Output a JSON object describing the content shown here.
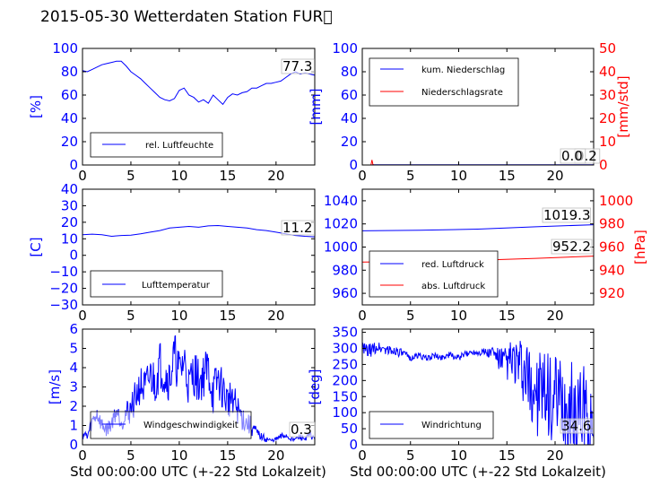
{
  "title": "2015-05-30 Wetterdaten Station FUR\u0000",
  "colors": {
    "left_axis": "#0000ff",
    "right_axis": "#ff0000",
    "frame": "#000000"
  },
  "chart_data": [
    {
      "type": "line",
      "ylabel": "[%]",
      "xlim": [
        0,
        24
      ],
      "ylim": [
        0,
        100
      ],
      "xticks": [
        "0",
        "5",
        "10",
        "15",
        "20"
      ],
      "yticks": [
        "0",
        "20",
        "40",
        "60",
        "80",
        "100"
      ],
      "legend": [
        "rel. Luftfeuchte"
      ],
      "annotations": [
        "77.3"
      ],
      "series": [
        {
          "name": "rel. Luftfeuchte",
          "color": "#0000ff",
          "x": [
            0,
            0.5,
            1,
            1.5,
            2,
            2.5,
            3,
            3.5,
            4,
            4.5,
            5,
            5.5,
            6,
            6.5,
            7,
            7.5,
            8,
            8.5,
            9,
            9.5,
            10,
            10.5,
            11,
            11.5,
            12,
            12.5,
            13,
            13.5,
            14,
            14.5,
            15,
            15.5,
            16,
            16.5,
            17,
            17.5,
            18,
            18.5,
            19,
            19.5,
            20,
            20.5,
            21,
            21.5,
            22,
            22.5,
            23,
            23.5,
            24
          ],
          "y": [
            81,
            80,
            82,
            84,
            86,
            87,
            88,
            89,
            89,
            85,
            80,
            77,
            74,
            70,
            66,
            62,
            58,
            56,
            55,
            57,
            64,
            66,
            60,
            58,
            54,
            56,
            53,
            60,
            56,
            52,
            58,
            61,
            60,
            62,
            63,
            66,
            66,
            68,
            70,
            70,
            71,
            72,
            75,
            78,
            80,
            78,
            79,
            78,
            77
          ]
        }
      ]
    },
    {
      "type": "line",
      "ylabel": "[mm]",
      "ylabel_right": "[mm/std]",
      "xlim": [
        0,
        24
      ],
      "ylim": [
        0,
        100
      ],
      "ylim_right": [
        0,
        50
      ],
      "xticks": [
        "0",
        "5",
        "10",
        "15",
        "20"
      ],
      "yticks": [
        "0",
        "20",
        "40",
        "60",
        "80",
        "100"
      ],
      "yticks_right": [
        "0",
        "10",
        "20",
        "30",
        "40",
        "50"
      ],
      "legend": [
        "kum. Niederschlag",
        "Niederschlagsrate"
      ],
      "annotations": [
        "0.2",
        "0.0"
      ],
      "series": [
        {
          "name": "kum. Niederschlag",
          "color": "#0000ff",
          "axis": "left",
          "x": [
            0,
            1,
            1.1,
            24
          ],
          "y": [
            0,
            0,
            0.2,
            0.2
          ]
        },
        {
          "name": "Niederschlagsrate",
          "color": "#ff0000",
          "axis": "right",
          "x": [
            0,
            0.9,
            1,
            1.1,
            1.2,
            24
          ],
          "y": [
            0,
            0,
            2.2,
            0.3,
            0,
            0
          ]
        }
      ]
    },
    {
      "type": "line",
      "ylabel": "[C]",
      "xlim": [
        0,
        24
      ],
      "ylim": [
        -30,
        40
      ],
      "xticks": [
        "0",
        "5",
        "10",
        "15",
        "20"
      ],
      "yticks": [
        "−30",
        "−20",
        "−10",
        "0",
        "10",
        "20",
        "30",
        "40"
      ],
      "legend": [
        "Lufttemperatur"
      ],
      "annotations": [
        "11.2"
      ],
      "series": [
        {
          "name": "Lufttemperatur",
          "color": "#0000ff",
          "x": [
            0,
            1,
            2,
            3,
            4,
            5,
            6,
            7,
            8,
            9,
            10,
            11,
            12,
            13,
            14,
            15,
            16,
            17,
            18,
            19,
            20,
            21,
            22,
            23,
            24
          ],
          "y": [
            12.5,
            12.8,
            12.5,
            11.5,
            12,
            12.2,
            13,
            14,
            15,
            16.5,
            17,
            17.5,
            17,
            17.8,
            18,
            17.5,
            17,
            16.5,
            15.5,
            15,
            14,
            13,
            12,
            11.5,
            11.2
          ]
        }
      ]
    },
    {
      "type": "line",
      "ylabel_right": "[hPa]",
      "xlim": [
        0,
        24
      ],
      "ylim": [
        950,
        1050
      ],
      "ylim_right": [
        910,
        1010
      ],
      "xticks": [
        "0",
        "5",
        "10",
        "15",
        "20"
      ],
      "yticks": [
        "960",
        "980",
        "1000",
        "1020",
        "1040"
      ],
      "yticks_right": [
        "920",
        "940",
        "960",
        "980",
        "1000"
      ],
      "legend": [
        "red. Luftdruck",
        "abs. Luftdruck"
      ],
      "annotations": [
        "1019.3",
        "952.2"
      ],
      "series": [
        {
          "name": "red. Luftdruck",
          "color": "#0000ff",
          "axis": "left",
          "x": [
            0,
            6,
            12,
            18,
            24
          ],
          "y": [
            1014,
            1014.5,
            1015.5,
            1017.5,
            1019.3
          ]
        },
        {
          "name": "abs. Luftdruck",
          "color": "#ff0000",
          "axis": "right",
          "x": [
            0,
            6,
            12,
            18,
            24
          ],
          "y": [
            947,
            947.5,
            948.5,
            950.2,
            952.2
          ]
        }
      ]
    },
    {
      "type": "line",
      "ylabel": "[m/s]",
      "xlim": [
        0,
        24
      ],
      "ylim": [
        0,
        6
      ],
      "xticks": [
        "0",
        "5",
        "10",
        "15",
        "20"
      ],
      "yticks": [
        "0",
        "1",
        "2",
        "3",
        "4",
        "5",
        "6"
      ],
      "legend": [
        "Windgeschwindigkeit"
      ],
      "annotations": [
        "0.3"
      ],
      "series": [
        {
          "name": "Windgeschwindigkeit",
          "color": "#0000ff",
          "x": [
            0,
            0.5,
            1,
            1.5,
            2,
            2.5,
            3,
            3.5,
            4,
            4.5,
            5,
            5.5,
            6,
            6.5,
            7,
            7.5,
            8,
            8.5,
            9,
            9.5,
            10,
            10.5,
            11,
            11.5,
            12,
            12.5,
            13,
            13.5,
            14,
            14.5,
            15,
            15.5,
            16,
            16.5,
            17,
            17.5,
            18,
            18.5,
            19,
            19.5,
            20,
            20.5,
            21,
            21.5,
            22,
            22.5,
            23,
            23.5,
            24
          ],
          "y": [
            0.6,
            0.4,
            1.2,
            1.6,
            1.0,
            0.8,
            1.1,
            1.8,
            1.2,
            1.6,
            1.9,
            2.5,
            3.1,
            2.8,
            3.6,
            3.2,
            4.2,
            3.6,
            3.4,
            4.6,
            3.7,
            4.4,
            3.0,
            3.8,
            3.2,
            3.6,
            3.9,
            2.6,
            3.4,
            2.8,
            2.2,
            2.6,
            1.8,
            1.4,
            1.1,
            0.9,
            0.6,
            0.4,
            0.3,
            0.2,
            0.3,
            0.4,
            0.5,
            0.3,
            0.3,
            0.4,
            0.3,
            0.5,
            0.3
          ],
          "amplitude": [
            0.3,
            0.3,
            0.4,
            0.5,
            0.4,
            0.4,
            0.4,
            0.5,
            0.5,
            0.6,
            0.8,
            0.9,
            1.0,
            1.1,
            1.1,
            1.2,
            1.3,
            1.2,
            1.2,
            1.3,
            1.2,
            1.3,
            1.1,
            1.3,
            1.2,
            1.2,
            1.3,
            1.2,
            1.1,
            1.1,
            1.0,
            0.9,
            0.8,
            0.7,
            0.6,
            0.5,
            0.3,
            0.2,
            0.2,
            0.1,
            0.1,
            0.2,
            0.2,
            0.1,
            0.1,
            0.2,
            0.1,
            0.2,
            0.1
          ]
        }
      ]
    },
    {
      "type": "line",
      "ylabel": "[deg]",
      "xlim": [
        0,
        24
      ],
      "ylim": [
        0,
        360
      ],
      "xticks": [
        "0",
        "5",
        "10",
        "15",
        "20"
      ],
      "yticks": [
        "0",
        "50",
        "100",
        "150",
        "200",
        "250",
        "300",
        "350"
      ],
      "legend": [
        "Windrichtung"
      ],
      "annotations": [
        "34.6"
      ],
      "series": [
        {
          "name": "Windrichtung",
          "color": "#0000ff",
          "x": [
            0,
            0.5,
            1,
            1.5,
            2,
            2.5,
            3,
            3.5,
            4,
            4.5,
            5,
            5.5,
            6,
            6.5,
            7,
            7.5,
            8,
            8.5,
            9,
            9.5,
            10,
            10.5,
            11,
            11.5,
            12,
            12.5,
            13,
            13.5,
            14,
            14.5,
            15,
            15.5,
            16,
            16.5,
            17,
            17.5,
            18,
            18.5,
            19,
            19.5,
            20,
            20.5,
            21,
            21.5,
            22,
            22.5,
            23,
            23.5,
            24
          ],
          "y": [
            300,
            290,
            295,
            305,
            300,
            298,
            290,
            295,
            285,
            280,
            270,
            275,
            280,
            268,
            272,
            278,
            270,
            276,
            280,
            275,
            270,
            280,
            285,
            290,
            288,
            292,
            285,
            290,
            275,
            260,
            255,
            265,
            250,
            230,
            200,
            180,
            170,
            160,
            140,
            150,
            130,
            120,
            110,
            100,
            120,
            90,
            110,
            80,
            35
          ],
          "amplitude": [
            20,
            25,
            20,
            20,
            18,
            20,
            15,
            15,
            15,
            10,
            10,
            10,
            10,
            10,
            10,
            10,
            10,
            10,
            10,
            10,
            10,
            10,
            10,
            10,
            12,
            12,
            15,
            20,
            30,
            45,
            55,
            70,
            80,
            100,
            120,
            130,
            140,
            140,
            140,
            150,
            150,
            150,
            150,
            160,
            160,
            160,
            150,
            150,
            20
          ]
        }
      ]
    }
  ],
  "xlabel_bottom": "Std 00:00:00 UTC (+-22 Std Lokalzeit)"
}
